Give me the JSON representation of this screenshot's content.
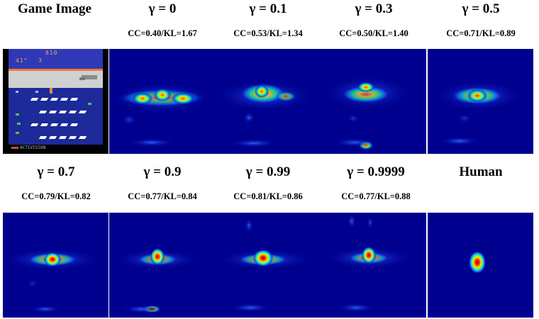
{
  "row1": {
    "titles": [
      "Game Image",
      "γ = 0",
      "γ = 0.1",
      "γ = 0.3",
      "γ = 0.5"
    ],
    "metrics": [
      "",
      "CC=0.40/KL=1.67",
      "CC=0.53/KL=1.34",
      "CC=0.50/KL=1.40",
      "CC=0.71/KL=0.89"
    ]
  },
  "row2": {
    "titles": [
      "γ = 0.7",
      "γ = 0.9",
      "γ = 0.99",
      "γ = 0.9999",
      "Human"
    ],
    "metrics": [
      "CC=0.79/KL=0.82",
      "CC=0.77/KL=0.84",
      "CC=0.81/KL=0.86",
      "CC=0.77/KL=0.88",
      ""
    ]
  },
  "game": {
    "score": "810",
    "temperature": "41°",
    "lives": "3",
    "publisher": "ACTIVISION"
  },
  "colors": {
    "heat_background": "#00008f",
    "game_sky": "#2f39b7",
    "game_water": "#1d2a9a"
  }
}
